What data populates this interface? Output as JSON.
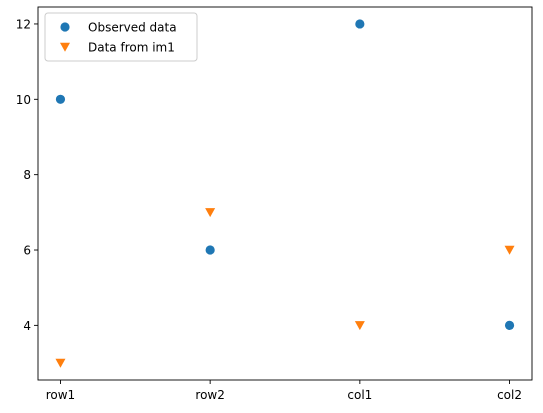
{
  "chart_data": {
    "type": "scatter",
    "categories": [
      "row1",
      "row2",
      "col1",
      "col2"
    ],
    "series": [
      {
        "name": "Observed data",
        "values": [
          10,
          6,
          12,
          4
        ],
        "color": "#1f77b4",
        "marker": "circle"
      },
      {
        "name": "Data from im1",
        "values": [
          3,
          7,
          4,
          6
        ],
        "color": "#ff7f0e",
        "marker": "triangle-down"
      }
    ],
    "yticks": [
      4,
      6,
      8,
      10,
      12
    ],
    "ylim": [
      2.55,
      12.45
    ],
    "grid": false,
    "legend": "upper-left"
  }
}
